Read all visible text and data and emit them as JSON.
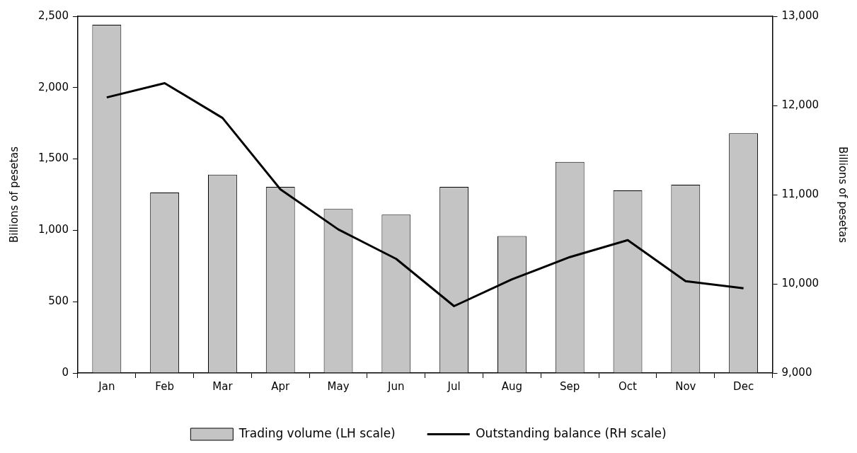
{
  "chart_data": {
    "type": "bar",
    "categories": [
      "Jan",
      "Feb",
      "Mar",
      "Apr",
      "May",
      "Jun",
      "Jul",
      "Aug",
      "Sep",
      "Oct",
      "Nov",
      "Dec"
    ],
    "series": [
      {
        "name": "Trading volume (LH scale)",
        "color": "#c4c4c4",
        "values": [
          2440,
          1265,
          1390,
          1305,
          1150,
          1110,
          1305,
          960,
          1480,
          1280,
          1320,
          1680
        ]
      },
      {
        "name": "Outstanding balance (RH scale)",
        "type": "line",
        "axis": "y2",
        "color": "#000000",
        "values": [
          12090,
          12250,
          11860,
          11060,
          10610,
          10280,
          9750,
          10050,
          10300,
          10490,
          10030,
          9950
        ]
      }
    ],
    "ylabel": "Billions of pesetas",
    "y2label": "Billions of pesetas",
    "ylim": [
      0,
      2500
    ],
    "yticks": [
      0,
      {
        "value": 500,
        "label": "500"
      },
      {
        "value": 1000,
        "label": "1,000"
      },
      {
        "value": 1500,
        "label": "1,500"
      },
      {
        "value": 2000,
        "label": "2,000"
      },
      {
        "value": 2500,
        "label": "2,500"
      }
    ],
    "y2lim": [
      9000,
      13000
    ],
    "y2ticks": [
      {
        "value": 9000,
        "label": "9,000"
      },
      {
        "value": 10000,
        "label": "10,000"
      },
      {
        "value": 11000,
        "label": "11,000"
      },
      {
        "value": 12000,
        "label": "12,000"
      },
      {
        "value": 13000,
        "label": "13,000"
      }
    ],
    "grid": false,
    "legend": "bottom",
    "marker": "none",
    "line_style": "solid"
  }
}
